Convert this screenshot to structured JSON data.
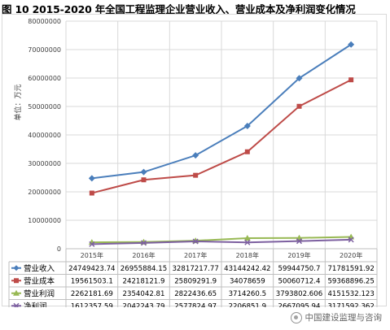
{
  "figure_title": "图 10   2015-2020 年全国工程监理企业营业收入、营业成本及净利润变化情况",
  "watermark": "中国建设监理与咨询",
  "chart_data": {
    "type": "line",
    "title": "",
    "ylabel": "单位：万元",
    "xlabel": "",
    "ylim": [
      0,
      80000000
    ],
    "y_ticks": [
      0,
      10000000,
      20000000,
      30000000,
      40000000,
      50000000,
      60000000,
      70000000,
      80000000
    ],
    "y_tick_labels": [
      "0",
      "10000000",
      "20000000",
      "30000000",
      "40000000",
      "50000000",
      "60000000",
      "70000000",
      "80000000"
    ],
    "grid": true,
    "legend": "data-table-below",
    "categories": [
      "2015年",
      "2016年",
      "2017年",
      "2018年",
      "2019年",
      "2020年"
    ],
    "series": [
      {
        "name": "营业收入",
        "color": "#4a7ebb",
        "marker": "diamond",
        "values": [
          24749423.74,
          26955884.15,
          32817217.77,
          43144242.42,
          59944750.7,
          71781591.92
        ],
        "labels": [
          "24749423.74",
          "26955884.15",
          "32817217.77",
          "43144242.42",
          "59944750.7",
          "71781591.92"
        ]
      },
      {
        "name": "营业成本",
        "color": "#be4b48",
        "marker": "square",
        "values": [
          19561503.1,
          24218121.9,
          25809291.9,
          34078659,
          50060712.4,
          59368896.25
        ],
        "labels": [
          "19561503.1",
          "24218121.9",
          "25809291.9",
          "34078659",
          "50060712.4",
          "59368896.25"
        ]
      },
      {
        "name": "营业利润",
        "color": "#98b954",
        "marker": "triangle",
        "values": [
          2262181.69,
          2354042.81,
          2822436.65,
          3714260.5,
          3793802.606,
          4151532.123
        ],
        "labels": [
          "2262181.69",
          "2354042.81",
          "2822436.65",
          "3714260.5",
          "3793802.606",
          "4151532.123"
        ]
      },
      {
        "name": "净利润",
        "color": "#7d60a0",
        "marker": "x",
        "values": [
          1612357.59,
          2042243.79,
          2577824.97,
          2206851.9,
          2667095.94,
          3171592.362
        ],
        "labels": [
          "1612357.59",
          "2042243.79",
          "2577824.97",
          "2206851.9",
          "2667095.94",
          "3171592.362"
        ]
      }
    ]
  }
}
